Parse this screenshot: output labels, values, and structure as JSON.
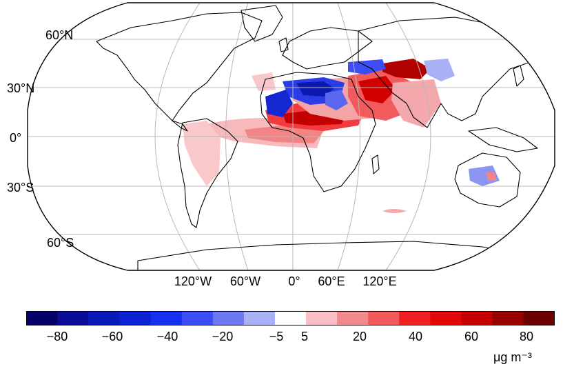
{
  "map": {
    "projection": "robinson",
    "lat_labels": [
      {
        "id": "60n",
        "text": "60°N"
      },
      {
        "id": "30n",
        "text": "30°N"
      },
      {
        "id": "0",
        "text": "0°"
      },
      {
        "id": "30s",
        "text": "30°S"
      },
      {
        "id": "60s",
        "text": "60°S"
      }
    ],
    "lon_labels": [
      {
        "id": "120w",
        "text": "120°W"
      },
      {
        "id": "60w",
        "text": "60°W"
      },
      {
        "id": "0",
        "text": "0°"
      },
      {
        "id": "60e",
        "text": "60°E"
      },
      {
        "id": "120e",
        "text": "120°E"
      }
    ],
    "anomaly_regions": [
      {
        "name": "north-africa-sahara",
        "sign": "negative",
        "level": -40
      },
      {
        "name": "west-sahara-coast",
        "sign": "negative",
        "level": -30
      },
      {
        "name": "sahel-belt",
        "sign": "positive",
        "level": 60
      },
      {
        "name": "tropical-atlantic-plume",
        "sign": "positive",
        "level": 40
      },
      {
        "name": "arabian-peninsula",
        "sign": "positive",
        "level": 50
      },
      {
        "name": "middle-east-iran",
        "sign": "positive",
        "level": 70
      },
      {
        "name": "central-asia",
        "sign": "negative",
        "level": -20
      },
      {
        "name": "india-pakistan",
        "sign": "positive",
        "level": 20
      },
      {
        "name": "south-america-east",
        "sign": "positive",
        "level": 10
      },
      {
        "name": "australia-interior",
        "sign": "negative",
        "level": -15
      },
      {
        "name": "southern-indian-ocean",
        "sign": "positive",
        "level": 10
      }
    ]
  },
  "colorbar": {
    "colors": [
      "#08006a",
      "#0a0c96",
      "#0a1ab8",
      "#0c22d4",
      "#1430f0",
      "#3c4df6",
      "#6c78f2",
      "#a8b0f6",
      "#ffffff",
      "#f8c0c4",
      "#f08a8c",
      "#f05a5c",
      "#f02020",
      "#e00808",
      "#c40000",
      "#980000",
      "#6a0000"
    ],
    "tick_labels": [
      {
        "id": "m80",
        "text": "−80"
      },
      {
        "id": "m60",
        "text": "−60"
      },
      {
        "id": "m40",
        "text": "−40"
      },
      {
        "id": "m20",
        "text": "−20"
      },
      {
        "id": "m5",
        "text": "−5"
      },
      {
        "id": "p5",
        "text": "5"
      },
      {
        "id": "p20",
        "text": "20"
      },
      {
        "id": "p40",
        "text": "40"
      },
      {
        "id": "p60",
        "text": "60"
      },
      {
        "id": "p80",
        "text": "80"
      }
    ],
    "units": "μg m⁻³"
  }
}
